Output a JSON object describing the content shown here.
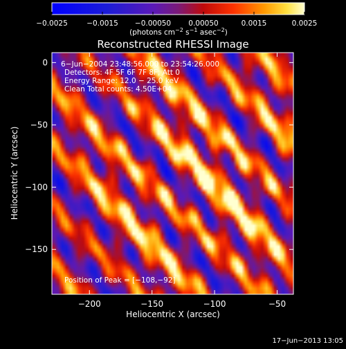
{
  "chart_data": {
    "type": "heatmap",
    "title": "Reconstructed RHESSI Image",
    "xlabel": "Heliocentric X (arcsec)",
    "ylabel": "Heliocentric Y (arcsec)",
    "xlim": [
      -230,
      -37
    ],
    "ylim": [
      -186,
      8
    ],
    "x_ticks": [
      -200,
      -150,
      -100,
      -50
    ],
    "x_tick_labels": [
      "−200",
      "−150",
      "−100",
      "−50"
    ],
    "y_ticks": [
      0,
      -50,
      -100,
      -150
    ],
    "y_tick_labels": [
      "0",
      "−50",
      "−100",
      "−150"
    ],
    "colorbar": {
      "range": [
        -0.0025,
        0.0025
      ],
      "ticks": [
        -0.0025,
        -0.0015,
        -0.0005,
        0.0005,
        0.0015,
        0.0025
      ],
      "tick_labels": [
        "−0.0025",
        "−0.0015",
        "−0.00050",
        "0.00050",
        "0.0015",
        "0.0025"
      ],
      "units_prefix": "(photons cm",
      "units_exp1": "−2",
      "units_mid": " s",
      "units_exp2": "−1",
      "units_mid2": " asec",
      "units_exp3": "−2",
      "units_suffix": ")"
    },
    "annotations": {
      "time_range": "6−Jun−2004 23:48:56.000 to 23:54:26.000",
      "detectors": "Detectors: 4F 5F 6F 7F 8F, Att 0",
      "energy": "Energy Range: 12.0 − 25.0 keV",
      "clean": "Clean     Total counts: 4.50E+04",
      "peak": "Position of Peak = [−108,−92]"
    },
    "peak": {
      "x": -108,
      "y": -92
    },
    "footer_date": "17−Jun−2013 13:05",
    "colormap_stops": [
      {
        "v": 0.0,
        "c": "#0000ff"
      },
      {
        "v": 0.22,
        "c": "#1c1cd6"
      },
      {
        "v": 0.4,
        "c": "#5a19b8"
      },
      {
        "v": 0.5,
        "c": "#7a1a78"
      },
      {
        "v": 0.6,
        "c": "#c00a0a"
      },
      {
        "v": 0.72,
        "c": "#ff3300"
      },
      {
        "v": 0.84,
        "c": "#ff9900"
      },
      {
        "v": 0.93,
        "c": "#ffe040"
      },
      {
        "v": 1.0,
        "c": "#ffffd0"
      }
    ],
    "grid": false
  }
}
